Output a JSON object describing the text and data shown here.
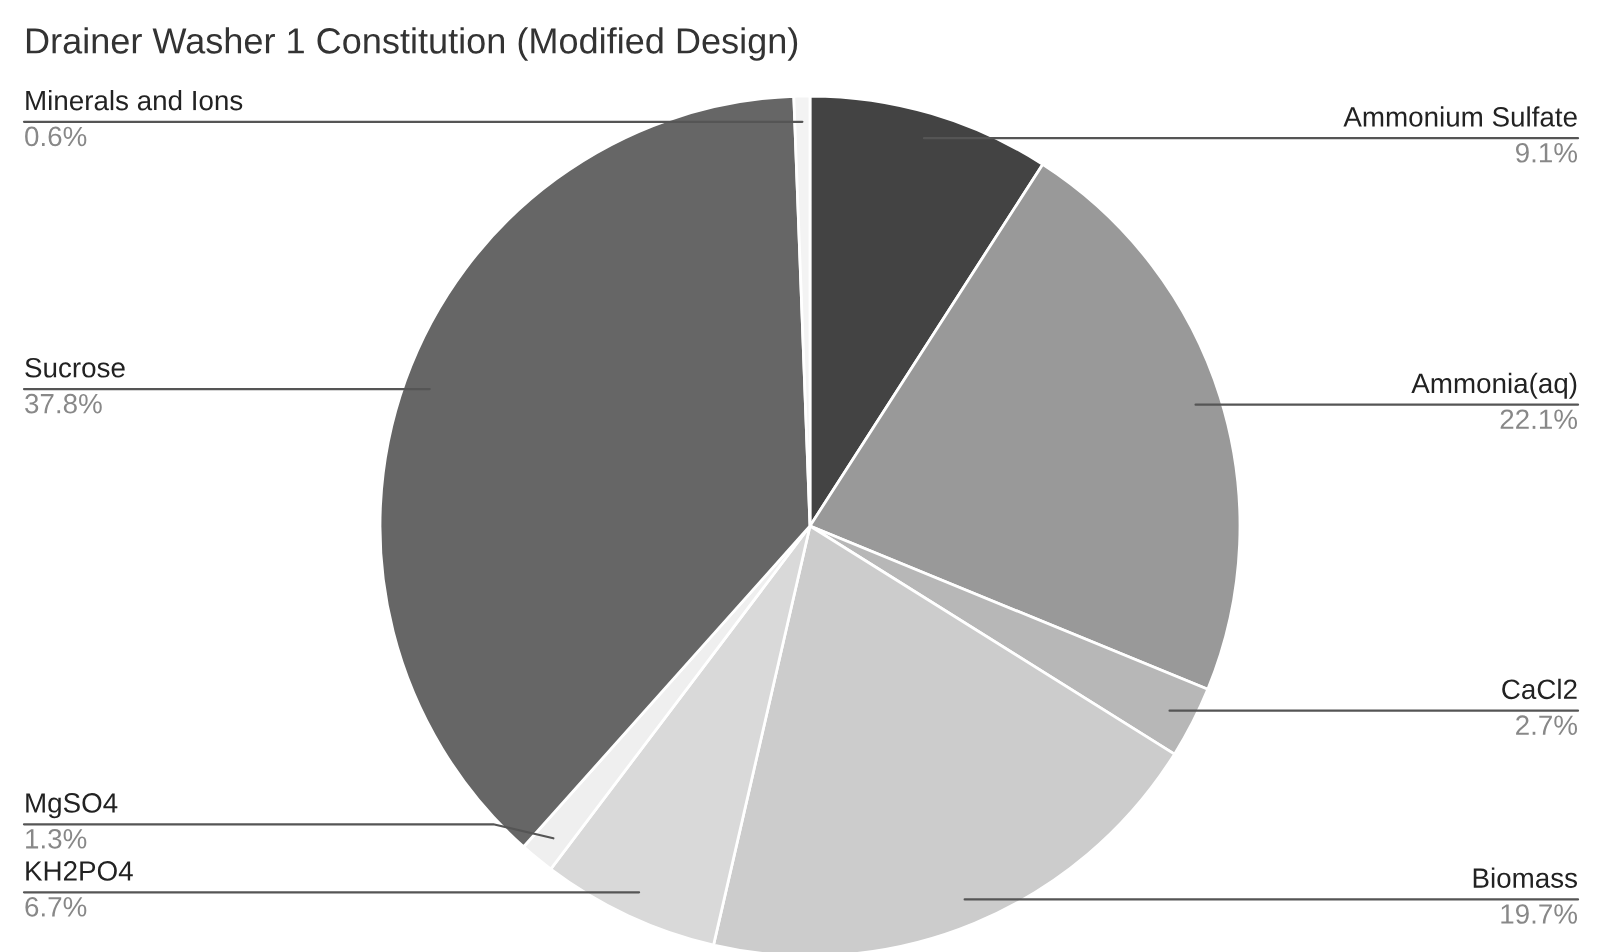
{
  "chart_data": {
    "type": "pie",
    "title": "Drainer Washer 1 Constitution (Modified Design)",
    "categories": [
      "Ammonium Sulfate",
      "Ammonia(aq)",
      "CaCl2",
      "Biomass",
      "KH2PO4",
      "MgSO4",
      "Sucrose",
      "Minerals and Ions"
    ],
    "values": [
      9.1,
      22.1,
      2.7,
      19.7,
      6.7,
      1.3,
      37.8,
      0.6
    ],
    "value_labels": [
      "9.1%",
      "22.1%",
      "2.7%",
      "19.7%",
      "6.7%",
      "1.3%",
      "37.8%",
      "0.6%"
    ],
    "colors": [
      "#434343",
      "#999999",
      "#b7b7b7",
      "#cccccc",
      "#d9d9d9",
      "#efefef",
      "#666666",
      "#f3f3f3"
    ],
    "legend": false
  }
}
